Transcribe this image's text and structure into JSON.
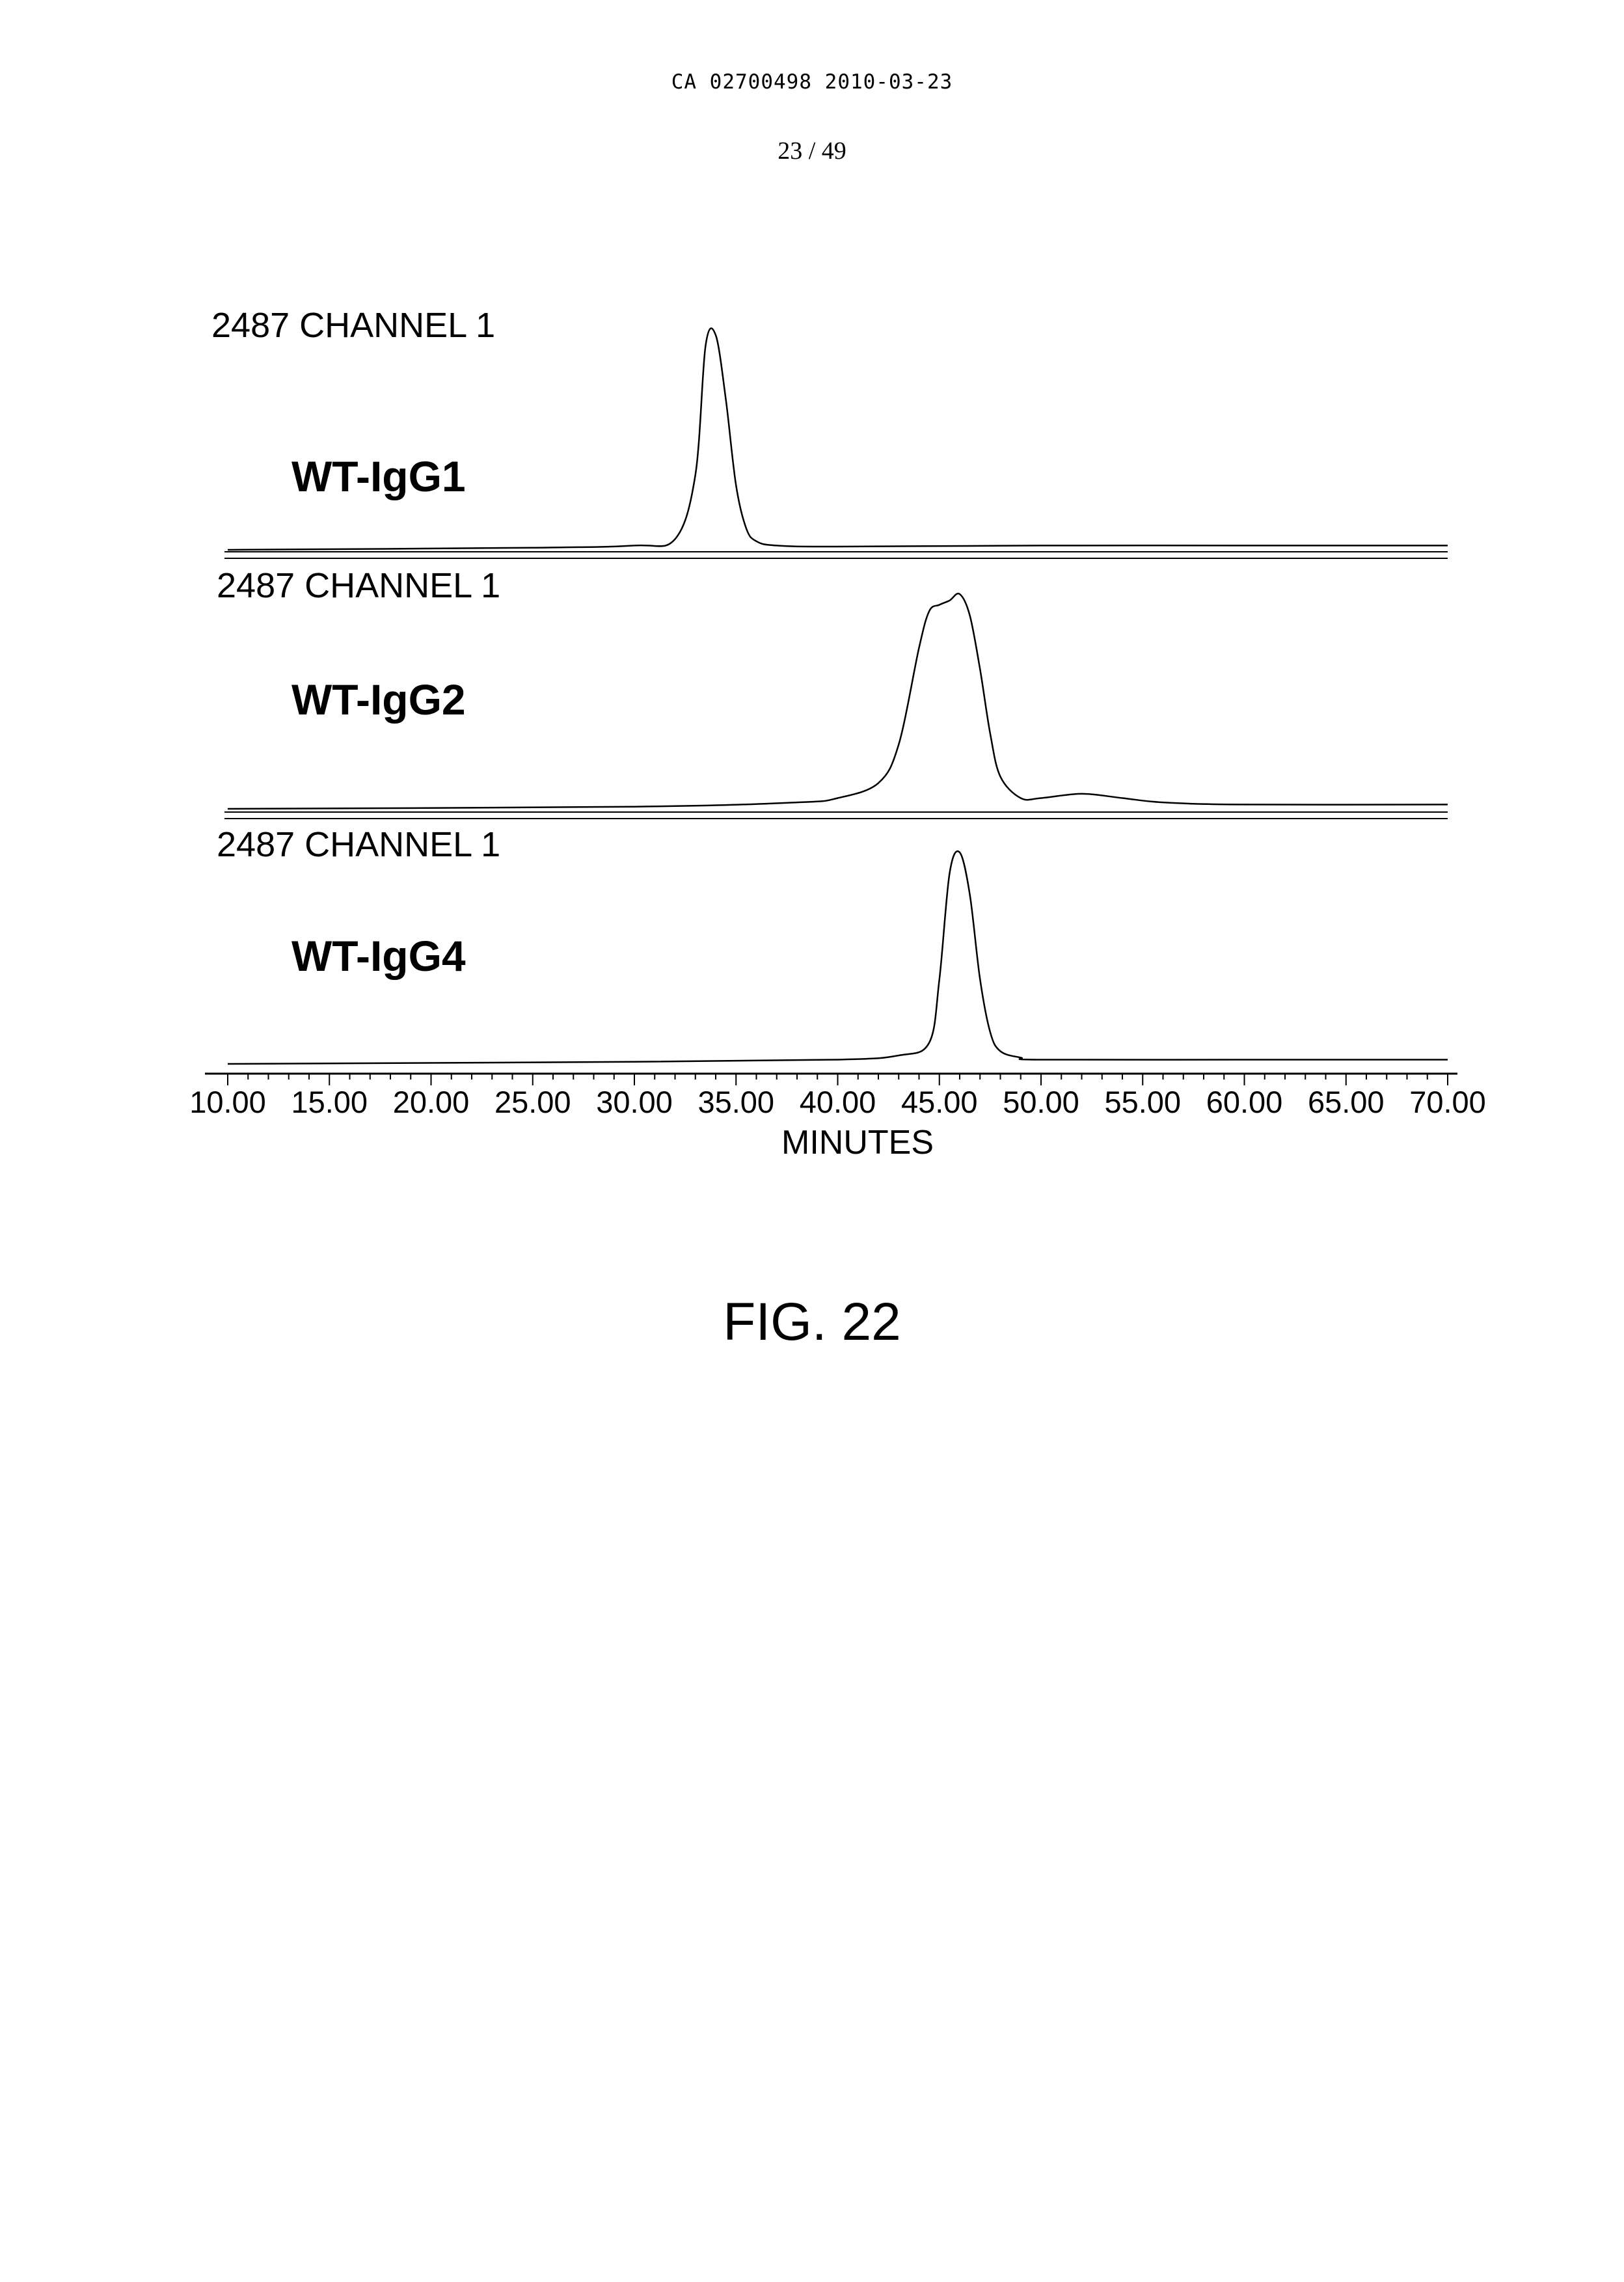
{
  "header": {
    "doc_id": "CA 02700498 2010-03-23",
    "page": "23 / 49"
  },
  "figure_caption": "FIG. 22",
  "chart_data": {
    "type": "line",
    "x_axis": {
      "label": "MINUTES",
      "range": [
        10.0,
        70.0
      ],
      "ticks": [
        "10.00",
        "15.00",
        "20.00",
        "25.00",
        "30.00",
        "35.00",
        "40.00",
        "45.00",
        "50.00",
        "55.00",
        "60.00",
        "65.00",
        "70.00"
      ]
    },
    "panels": [
      {
        "channel_label": "2487 CHANNEL 1",
        "sample_label": "WT-IgG1",
        "x": [
          10,
          25,
          30,
          32,
          33,
          33.5,
          34,
          34.5,
          35,
          35.5,
          36,
          37,
          40,
          50,
          60,
          70
        ],
        "y": [
          0.0,
          0.01,
          0.02,
          0.05,
          0.35,
          0.95,
          1.0,
          0.7,
          0.3,
          0.1,
          0.04,
          0.02,
          0.015,
          0.02,
          0.02,
          0.02
        ]
      },
      {
        "channel_label": "2487 CHANNEL 1",
        "sample_label": "WT-IgG2",
        "x": [
          10,
          30,
          38,
          40,
          42,
          43,
          44,
          44.5,
          45,
          45.5,
          46,
          46.5,
          47,
          47.5,
          48,
          49,
          50,
          52,
          54,
          56,
          60,
          70
        ],
        "y": [
          0.0,
          0.01,
          0.03,
          0.05,
          0.12,
          0.3,
          0.75,
          0.92,
          0.95,
          0.97,
          1.0,
          0.9,
          0.65,
          0.35,
          0.15,
          0.05,
          0.05,
          0.07,
          0.05,
          0.03,
          0.02,
          0.02
        ]
      },
      {
        "channel_label": "2487 CHANNEL 1",
        "sample_label": "WT-IgG4",
        "x": [
          10,
          30,
          40,
          43,
          44.5,
          45,
          45.5,
          46,
          46.5,
          47,
          47.5,
          48,
          49,
          50,
          60,
          70
        ],
        "y": [
          0.0,
          0.01,
          0.02,
          0.04,
          0.1,
          0.4,
          0.9,
          1.0,
          0.8,
          0.4,
          0.15,
          0.06,
          0.03,
          0.02,
          0.02,
          0.02
        ]
      }
    ]
  }
}
